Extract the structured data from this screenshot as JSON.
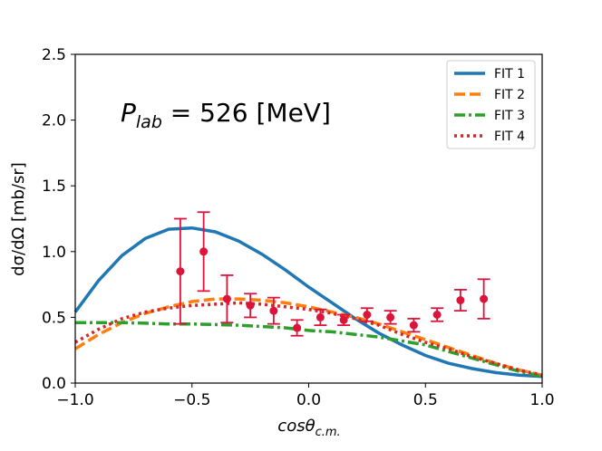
{
  "chart_data": {
    "type": "line",
    "title": "",
    "annotation": {
      "symbol": "P",
      "subscript": "lab",
      "rest": " = 526 [MeV]"
    },
    "xlabel": {
      "main": "cosθ",
      "subscript": "c.m."
    },
    "ylabel": "dσ/dΩ [mb/sr]",
    "xlim": [
      -1.0,
      1.0
    ],
    "ylim": [
      0.0,
      2.5
    ],
    "x_ticks": [
      -1.0,
      -0.5,
      0.0,
      0.5,
      1.0
    ],
    "x_tick_labels": [
      "−1.0",
      "−0.5",
      "0.0",
      "0.5",
      "1.0"
    ],
    "y_ticks": [
      0.0,
      0.5,
      1.0,
      1.5,
      2.0,
      2.5
    ],
    "y_tick_labels": [
      "0.0",
      "0.5",
      "1.0",
      "1.5",
      "2.0",
      "2.5"
    ],
    "legend_position": "top-right",
    "series": [
      {
        "name": "FIT 1",
        "color": "#1f77b4",
        "style": "solid",
        "x": [
          -1.0,
          -0.9,
          -0.8,
          -0.7,
          -0.6,
          -0.5,
          -0.4,
          -0.3,
          -0.2,
          -0.1,
          0.0,
          0.1,
          0.2,
          0.3,
          0.4,
          0.5,
          0.6,
          0.7,
          0.8,
          0.9,
          1.0
        ],
        "y": [
          0.54,
          0.78,
          0.97,
          1.1,
          1.17,
          1.18,
          1.15,
          1.08,
          0.98,
          0.86,
          0.73,
          0.61,
          0.49,
          0.38,
          0.29,
          0.21,
          0.15,
          0.11,
          0.08,
          0.06,
          0.05
        ]
      },
      {
        "name": "FIT 2",
        "color": "#ff7f0e",
        "style": "dashed",
        "x": [
          -1.0,
          -0.9,
          -0.8,
          -0.7,
          -0.6,
          -0.5,
          -0.4,
          -0.3,
          -0.2,
          -0.1,
          0.0,
          0.1,
          0.2,
          0.3,
          0.4,
          0.5,
          0.6,
          0.7,
          0.8,
          0.9,
          1.0
        ],
        "y": [
          0.26,
          0.37,
          0.46,
          0.53,
          0.58,
          0.62,
          0.64,
          0.64,
          0.63,
          0.61,
          0.58,
          0.54,
          0.5,
          0.45,
          0.39,
          0.33,
          0.27,
          0.21,
          0.15,
          0.1,
          0.06
        ]
      },
      {
        "name": "FIT 3",
        "color": "#2ca02c",
        "style": "dashdot",
        "x": [
          -1.0,
          -0.9,
          -0.8,
          -0.7,
          -0.6,
          -0.5,
          -0.4,
          -0.3,
          -0.2,
          -0.1,
          0.0,
          0.1,
          0.2,
          0.3,
          0.4,
          0.5,
          0.6,
          0.7,
          0.8,
          0.9,
          1.0
        ],
        "y": [
          0.46,
          0.46,
          0.46,
          0.455,
          0.45,
          0.45,
          0.445,
          0.44,
          0.43,
          0.42,
          0.4,
          0.39,
          0.37,
          0.35,
          0.32,
          0.29,
          0.24,
          0.19,
          0.14,
          0.09,
          0.05
        ]
      },
      {
        "name": "FIT 4",
        "color": "#d62728",
        "style": "dotted",
        "x": [
          -1.0,
          -0.9,
          -0.8,
          -0.7,
          -0.6,
          -0.5,
          -0.4,
          -0.3,
          -0.2,
          -0.1,
          0.0,
          0.1,
          0.2,
          0.3,
          0.4,
          0.5,
          0.6,
          0.7,
          0.8,
          0.9,
          1.0
        ],
        "y": [
          0.31,
          0.41,
          0.49,
          0.54,
          0.57,
          0.59,
          0.6,
          0.61,
          0.6,
          0.58,
          0.56,
          0.53,
          0.49,
          0.44,
          0.37,
          0.31,
          0.26,
          0.2,
          0.15,
          0.1,
          0.06
        ]
      }
    ],
    "data_points": {
      "color": "#dc143c",
      "x": [
        -0.55,
        -0.45,
        -0.35,
        -0.25,
        -0.15,
        -0.05,
        0.05,
        0.15,
        0.25,
        0.35,
        0.45,
        0.55,
        0.65,
        0.75
      ],
      "y": [
        0.85,
        1.0,
        0.64,
        0.59,
        0.55,
        0.42,
        0.5,
        0.48,
        0.52,
        0.5,
        0.44,
        0.52,
        0.63,
        0.64
      ],
      "err": [
        0.4,
        0.3,
        0.18,
        0.09,
        0.1,
        0.06,
        0.06,
        0.04,
        0.05,
        0.05,
        0.05,
        0.05,
        0.08,
        0.15
      ]
    }
  }
}
